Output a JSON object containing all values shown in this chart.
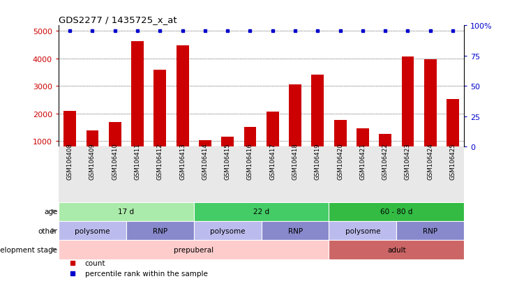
{
  "title": "GDS2277 / 1435725_x_at",
  "samples": [
    "GSM106408",
    "GSM106409",
    "GSM106410",
    "GSM106411",
    "GSM106412",
    "GSM106413",
    "GSM106414",
    "GSM106415",
    "GSM106416",
    "GSM106417",
    "GSM106418",
    "GSM106419",
    "GSM106420",
    "GSM106421",
    "GSM106422",
    "GSM106423",
    "GSM106424",
    "GSM106425"
  ],
  "counts": [
    2100,
    1380,
    1700,
    4620,
    3580,
    4480,
    1020,
    1150,
    1520,
    2080,
    3060,
    3400,
    1760,
    1460,
    1260,
    4080,
    3960,
    2520
  ],
  "bar_color": "#cc0000",
  "dot_color": "#0000cc",
  "ylim_left": [
    800,
    5200
  ],
  "ylim_right": [
    0,
    100
  ],
  "yticks_left": [
    1000,
    2000,
    3000,
    4000,
    5000
  ],
  "yticks_right": [
    0,
    25,
    50,
    75,
    100
  ],
  "age_groups": [
    {
      "label": "17 d",
      "start": 0,
      "end": 5,
      "color": "#aaeaaa"
    },
    {
      "label": "22 d",
      "start": 6,
      "end": 11,
      "color": "#44cc66"
    },
    {
      "label": "60 - 80 d",
      "start": 12,
      "end": 17,
      "color": "#33bb44"
    }
  ],
  "other_groups": [
    {
      "label": "polysome",
      "start": 0,
      "end": 2,
      "color": "#bbbbee"
    },
    {
      "label": "RNP",
      "start": 3,
      "end": 5,
      "color": "#8888cc"
    },
    {
      "label": "polysome",
      "start": 6,
      "end": 8,
      "color": "#bbbbee"
    },
    {
      "label": "RNP",
      "start": 9,
      "end": 11,
      "color": "#8888cc"
    },
    {
      "label": "polysome",
      "start": 12,
      "end": 14,
      "color": "#bbbbee"
    },
    {
      "label": "RNP",
      "start": 15,
      "end": 17,
      "color": "#8888cc"
    }
  ],
  "dev_groups": [
    {
      "label": "prepuberal",
      "start": 0,
      "end": 11,
      "color": "#ffcccc"
    },
    {
      "label": "adult",
      "start": 12,
      "end": 17,
      "color": "#cc6666"
    }
  ],
  "row_labels": [
    "age",
    "other",
    "development stage"
  ],
  "legend_count_color": "#cc0000",
  "legend_dot_color": "#0000cc",
  "xlabels_bg": "#e8e8e8"
}
